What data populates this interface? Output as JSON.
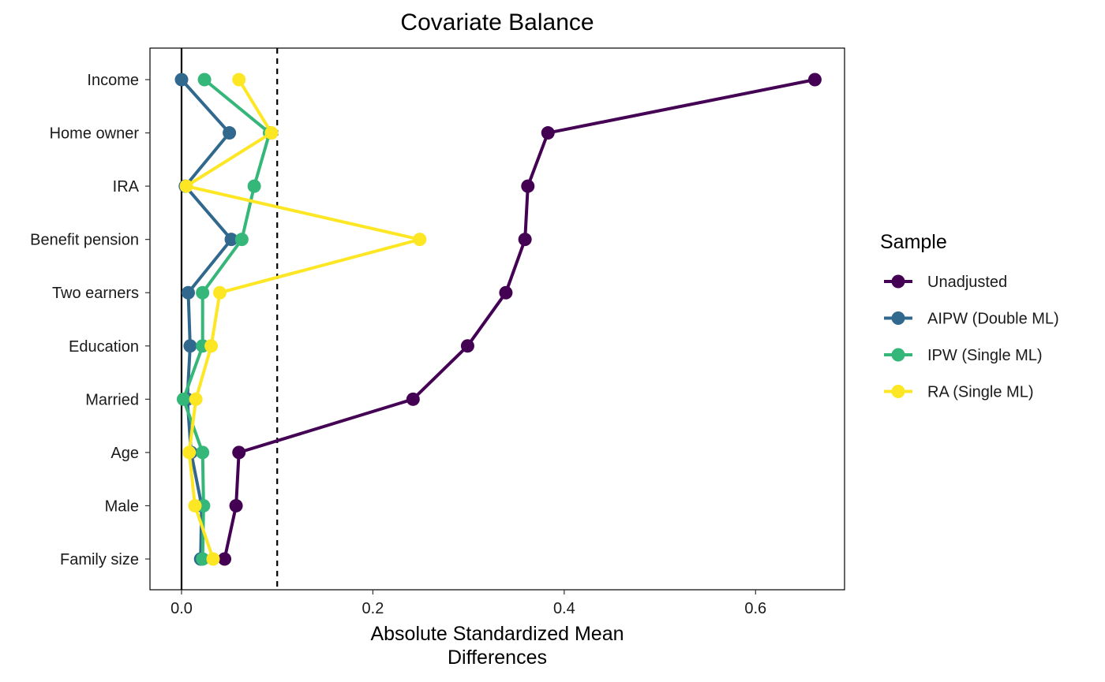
{
  "chart_data": {
    "type": "line",
    "title": "Covariate Balance",
    "xlabel_lines": [
      "Absolute Standardized Mean",
      "Differences"
    ],
    "ylabel": "",
    "xlim": [
      -0.033,
      0.693
    ],
    "xticks": [
      0.0,
      0.2,
      0.4,
      0.6
    ],
    "xtick_labels": [
      "0.0",
      "0.2",
      "0.4",
      "0.6"
    ],
    "reference_lines": {
      "solid_x": 0.0,
      "dashed_x": 0.1
    },
    "grid": false,
    "legend_placement": "right",
    "legend_title": "Sample",
    "categories": [
      "Income",
      "Home owner",
      "IRA",
      "Benefit pension",
      "Two earners",
      "Education",
      "Married",
      "Age",
      "Male",
      "Family size"
    ],
    "series": [
      {
        "name": "Unadjusted",
        "color": "#440154",
        "values": [
          0.662,
          0.383,
          0.362,
          0.359,
          0.339,
          0.299,
          0.242,
          0.06,
          0.057,
          0.045
        ]
      },
      {
        "name": "AIPW (Double ML)",
        "color": "#31688E",
        "values": [
          0.0,
          0.05,
          0.004,
          0.052,
          0.007,
          0.009,
          0.006,
          0.01,
          0.021,
          0.02
        ]
      },
      {
        "name": "IPW (Single ML)",
        "color": "#35B779",
        "values": [
          0.024,
          0.092,
          0.076,
          0.063,
          0.022,
          0.022,
          0.002,
          0.022,
          0.023,
          0.022
        ]
      },
      {
        "name": "RA (Single ML)",
        "color": "#FDE725",
        "values": [
          0.06,
          0.094,
          0.005,
          0.249,
          0.04,
          0.031,
          0.015,
          0.008,
          0.014,
          0.033
        ]
      }
    ]
  }
}
